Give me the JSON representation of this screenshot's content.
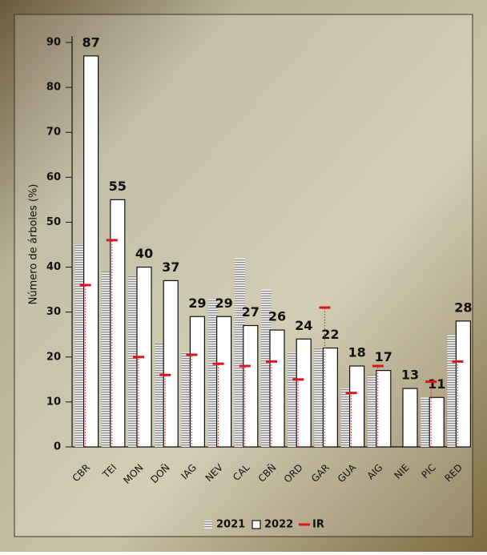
{
  "chart_data": {
    "type": "bar",
    "ylabel": "Número de árboles (%)",
    "categories": [
      "CBR",
      "TEI",
      "MON",
      "DOÑ",
      "IAG",
      "NEV",
      "CAL",
      "CBÑ",
      "ORD",
      "GAR",
      "GUA",
      "AIG",
      "NIE",
      "PIC",
      "RED"
    ],
    "series": [
      {
        "name": "2021",
        "color": "#8a8a8a",
        "values": [
          45,
          39,
          38,
          23,
          21,
          33,
          42,
          35,
          21,
          22,
          13,
          16,
          null,
          11,
          25
        ]
      },
      {
        "name": "2022",
        "color": "#ffffff",
        "values": [
          87,
          55,
          40,
          37,
          29,
          29,
          27,
          26,
          24,
          22,
          18,
          17,
          13,
          11,
          28
        ]
      },
      {
        "name": "IR",
        "color": "#e0141e",
        "values": [
          36,
          46,
          20,
          16,
          20.5,
          18.5,
          18,
          19,
          15,
          31,
          12,
          18,
          null,
          14.5,
          19
        ]
      }
    ],
    "ylim": [
      0,
      90
    ],
    "yticks": [
      0,
      10,
      20,
      30,
      40,
      50,
      60,
      70,
      80,
      90
    ]
  }
}
